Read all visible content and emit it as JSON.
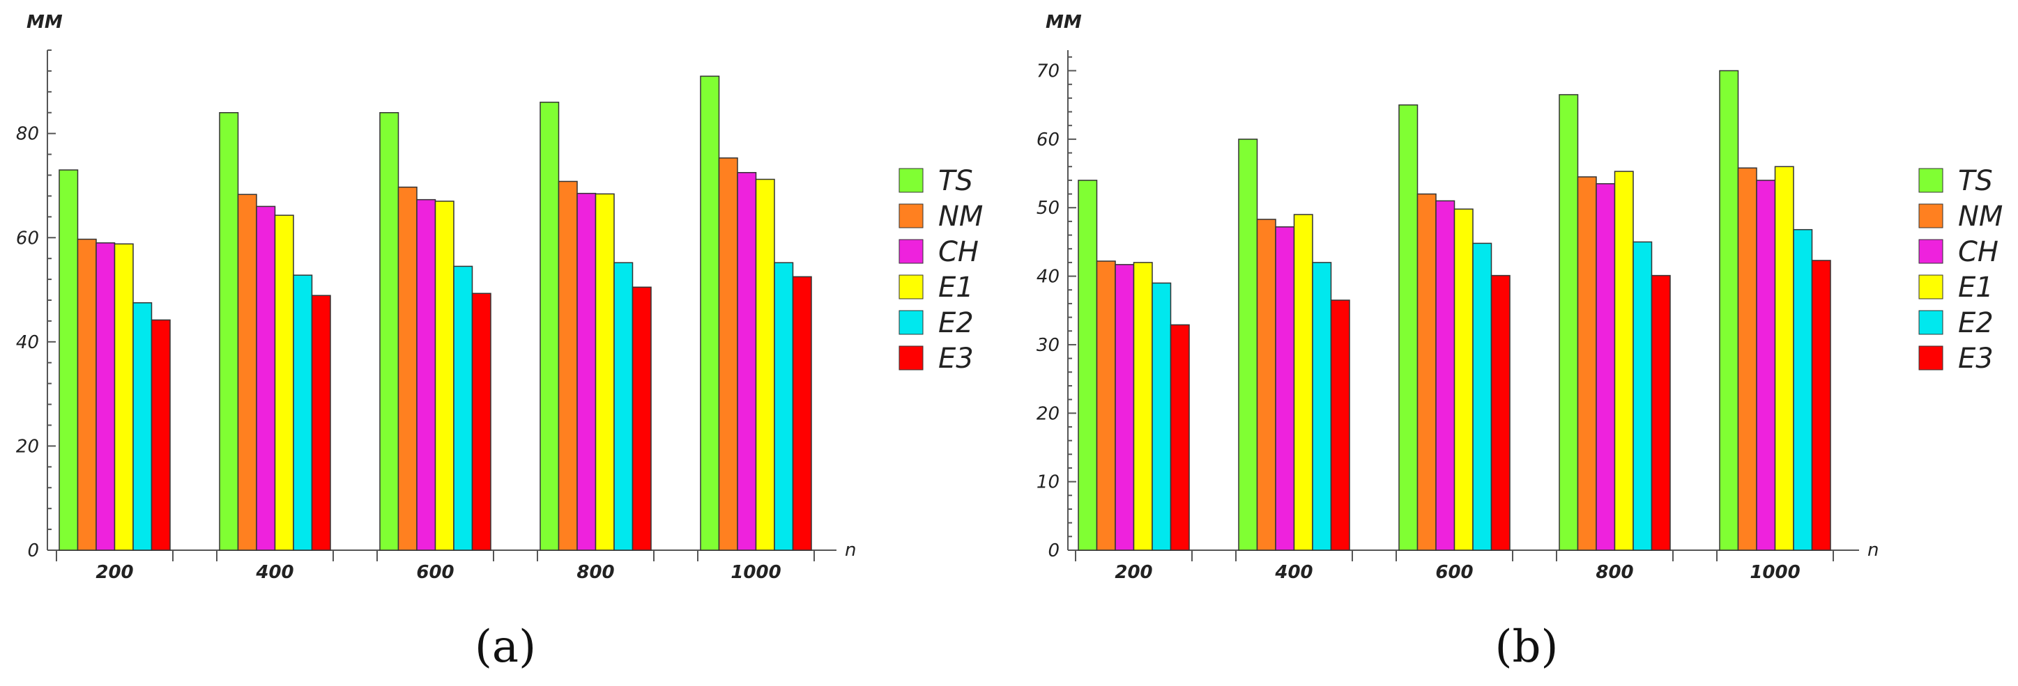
{
  "chart_data": [
    {
      "type": "bar",
      "panel_label": "(a)",
      "ylabel": "MM",
      "xlabel": "n",
      "ylim": [
        0,
        96
      ],
      "yticks": [
        0,
        20,
        40,
        60,
        80
      ],
      "categories": [
        "200",
        "400",
        "600",
        "800",
        "1000"
      ],
      "legend_position": "right",
      "series": [
        {
          "name": "TS",
          "color": "#80ff33",
          "values": [
            73,
            84,
            84,
            86,
            91
          ]
        },
        {
          "name": "NM",
          "color": "#ff8020",
          "values": [
            59.7,
            68.3,
            69.7,
            70.8,
            75.3
          ]
        },
        {
          "name": "CH",
          "color": "#ee22dd",
          "values": [
            59,
            66,
            67.3,
            68.5,
            72.5
          ]
        },
        {
          "name": "E1",
          "color": "#ffff00",
          "values": [
            58.8,
            64.3,
            67,
            68.4,
            71.2
          ]
        },
        {
          "name": "E2",
          "color": "#00e8ee",
          "values": [
            47.5,
            52.8,
            54.5,
            55.2,
            55.2
          ]
        },
        {
          "name": "E3",
          "color": "#ff0000",
          "values": [
            44.2,
            48.9,
            49.3,
            50.5,
            52.5
          ]
        }
      ]
    },
    {
      "type": "bar",
      "panel_label": "(b)",
      "ylabel": "MM",
      "xlabel": "n",
      "ylim": [
        0,
        73
      ],
      "yticks": [
        0,
        10,
        20,
        30,
        40,
        50,
        60,
        70
      ],
      "categories": [
        "200",
        "400",
        "600",
        "800",
        "1000"
      ],
      "legend_position": "right",
      "series": [
        {
          "name": "TS",
          "color": "#80ff33",
          "values": [
            54,
            60,
            65,
            66.5,
            70
          ]
        },
        {
          "name": "NM",
          "color": "#ff8020",
          "values": [
            42.2,
            48.3,
            52,
            54.5,
            55.8
          ]
        },
        {
          "name": "CH",
          "color": "#ee22dd",
          "values": [
            41.7,
            47.2,
            51,
            53.5,
            54
          ]
        },
        {
          "name": "E1",
          "color": "#ffff00",
          "values": [
            42,
            49,
            49.8,
            55.3,
            56
          ]
        },
        {
          "name": "E2",
          "color": "#00e8ee",
          "values": [
            39,
            42,
            44.8,
            45,
            46.8
          ]
        },
        {
          "name": "E3",
          "color": "#ff0000",
          "values": [
            32.9,
            36.5,
            40.1,
            40.1,
            42.3
          ]
        }
      ]
    }
  ]
}
